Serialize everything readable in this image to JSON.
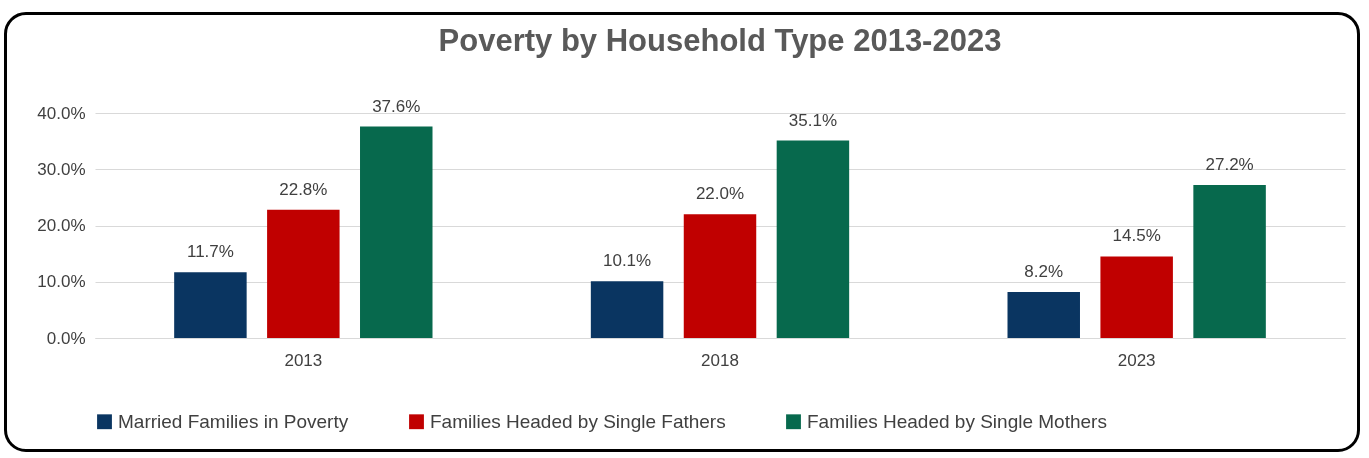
{
  "chart_data": {
    "type": "bar",
    "title": "Poverty by Household Type 2013-2023",
    "categories": [
      "2013",
      "2018",
      "2023"
    ],
    "series": [
      {
        "name": "Married Families in Poverty",
        "color": "#0a3561",
        "values": [
          11.7,
          10.1,
          8.2
        ],
        "value_labels": [
          "11.7%",
          "10.1%",
          "8.2%"
        ]
      },
      {
        "name": "Families Headed by Single Fathers",
        "color": "#c00000",
        "values": [
          22.8,
          22.0,
          14.5
        ],
        "value_labels": [
          "22.8%",
          "22.0%",
          "14.5%"
        ]
      },
      {
        "name": "Families Headed by Single Mothers",
        "color": "#07694d",
        "values": [
          37.6,
          35.1,
          27.2
        ],
        "value_labels": [
          "37.6%",
          "35.1%",
          "27.2%"
        ]
      }
    ],
    "ylim": [
      0,
      40
    ],
    "yticks": [
      {
        "value": 0,
        "label": "0.0%"
      },
      {
        "value": 10,
        "label": "10.0%"
      },
      {
        "value": 20,
        "label": "20.0%"
      },
      {
        "value": 30,
        "label": "30.0%"
      },
      {
        "value": 40,
        "label": "40.0%"
      }
    ],
    "grid": true,
    "legend": "bottom"
  }
}
